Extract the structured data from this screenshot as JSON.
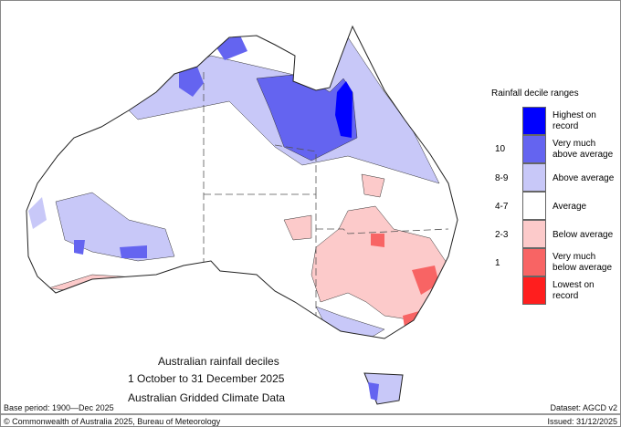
{
  "title_lines": [
    "Australian rainfall deciles",
    "1 October to 31 December 2025",
    "Australian Gridded Climate Data"
  ],
  "base_period": "Base period: 1900—Dec 2025",
  "dataset": "Dataset: AGCD v2",
  "copyright": "© Commonwealth of Australia 2025, Bureau of Meteorology",
  "issued": "Issued: 31/12/2025",
  "legend": {
    "title": "Rainfall decile ranges",
    "items": [
      {
        "label": "Highest on record",
        "range": "",
        "color": "#0000ff"
      },
      {
        "label": "Very much above average",
        "range": "10",
        "color": "#6464f0"
      },
      {
        "label": "Above average",
        "range": "8-9",
        "color": "#c8c8f8"
      },
      {
        "label": "Average",
        "range": "4-7",
        "color": "#ffffff"
      },
      {
        "label": "Below average",
        "range": "2-3",
        "color": "#fccaca"
      },
      {
        "label": "Very much below average",
        "range": "1",
        "color": "#f86464"
      },
      {
        "label": "Lowest on record",
        "range": "",
        "color": "#ff1e1e"
      }
    ]
  }
}
